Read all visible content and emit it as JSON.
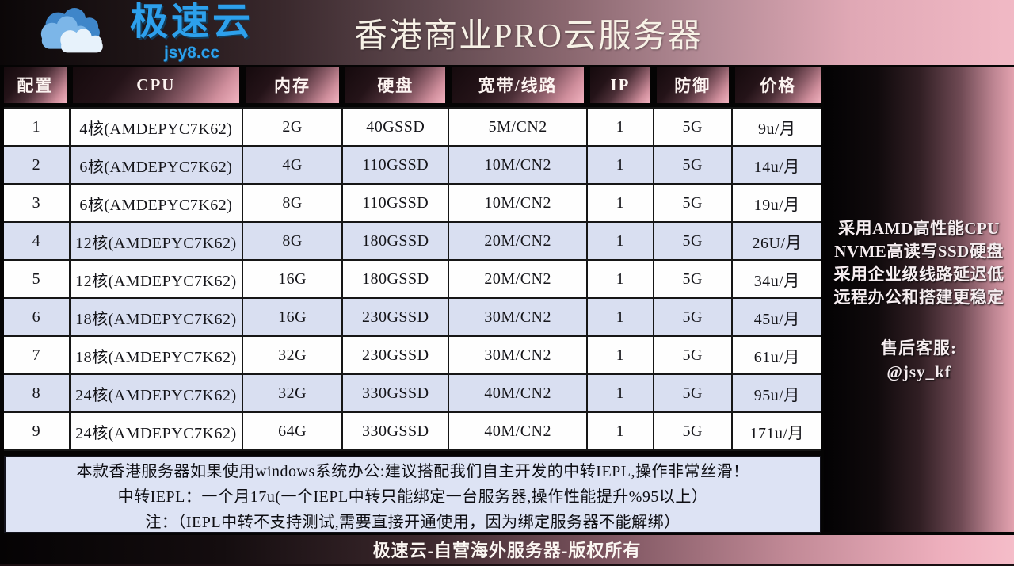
{
  "brand": {
    "name": "极速云",
    "domain": "jsy8.cc",
    "logo_icon": "cloud-icon"
  },
  "header": {
    "title": "香港商业PRO云服务器"
  },
  "table": {
    "columns": [
      "配置",
      "CPU",
      "内存",
      "硬盘",
      "宽带/线路",
      "IP",
      "防御",
      "价格"
    ],
    "rows": [
      [
        "1",
        "4核(AMDEPYC7K62)",
        "2G",
        "40GSSD",
        "5M/CN2",
        "1",
        "5G",
        "9u/月"
      ],
      [
        "2",
        "6核(AMDEPYC7K62)",
        "4G",
        "110GSSD",
        "10M/CN2",
        "1",
        "5G",
        "14u/月"
      ],
      [
        "3",
        "6核(AMDEPYC7K62)",
        "8G",
        "110GSSD",
        "10M/CN2",
        "1",
        "5G",
        "19u/月"
      ],
      [
        "4",
        "12核(AMDEPYC7K62)",
        "8G",
        "180GSSD",
        "20M/CN2",
        "1",
        "5G",
        "26U/月"
      ],
      [
        "5",
        "12核(AMDEPYC7K62)",
        "16G",
        "180GSSD",
        "20M/CN2",
        "1",
        "5G",
        "34u/月"
      ],
      [
        "6",
        "18核(AMDEPYC7K62)",
        "16G",
        "230GSSD",
        "30M/CN2",
        "1",
        "5G",
        "45u/月"
      ],
      [
        "7",
        "18核(AMDEPYC7K62)",
        "32G",
        "230GSSD",
        "30M/CN2",
        "1",
        "5G",
        "61u/月"
      ],
      [
        "8",
        "24核(AMDEPYC7K62)",
        "32G",
        "330GSSD",
        "40M/CN2",
        "1",
        "5G",
        "95u/月"
      ],
      [
        "9",
        "24核(AMDEPYC7K62)",
        "64G",
        "330GSSD",
        "40M/CN2",
        "1",
        "5G",
        "171u/月"
      ]
    ]
  },
  "sidebar": {
    "features": [
      "采用AMD高性能CPU",
      "NVME高读写SSD硬盘",
      "采用企业级线路延迟低",
      "远程办公和搭建更稳定"
    ],
    "support_label": "售后客服:",
    "support_handle": "@jsy_kf"
  },
  "notes": {
    "lines": [
      "本款香港服务器如果使用windows系统办公:建议搭配我们自主开发的中转IEPL,操作非常丝滑！",
      "中转IEPL：一个月17u(一个IEPL中转只能绑定一台服务器,操作性能提升%95以上）",
      "注：（IEPL中转不支持测试,需要直接开通使用，因为绑定服务器不能解绑）"
    ]
  },
  "footer": {
    "text": "极速云-自营海外服务器-版权所有"
  },
  "colors": {
    "brand_blue": "#2da0ec",
    "accent_pink": "#f1b9c5",
    "header_dark": "#150a0d",
    "row_alt_blue": "#d9dff1",
    "notes_bg": "#dde3f4",
    "text_light": "#f7f1e6"
  }
}
